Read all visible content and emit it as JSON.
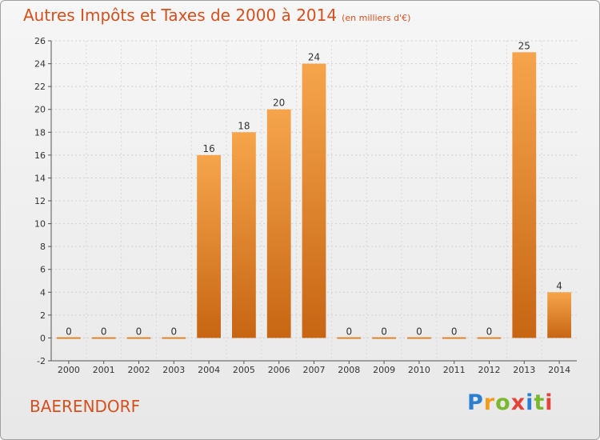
{
  "header": {
    "title": "Autres Impôts et Taxes de 2000 à 2014",
    "subtitle": "(en milliers d'€)"
  },
  "footer": {
    "commune": "BAERENDORF",
    "logo": {
      "p": "P",
      "r": "r",
      "o": "o",
      "x": "x",
      "i": "i",
      "t": "t",
      "i2": "i"
    }
  },
  "colors": {
    "bar_top": "#f6a54c",
    "bar_bottom": "#c76513",
    "title": "#d6501e",
    "logo": [
      "#2a7fd0",
      "#f39a1c",
      "#7cb82f",
      "#e2443b",
      "#2a7fd0",
      "#7cb82f",
      "#e2443b"
    ]
  },
  "chart_data": {
    "type": "bar",
    "categories": [
      "2000",
      "2001",
      "2002",
      "2003",
      "2004",
      "2005",
      "2006",
      "2007",
      "2008",
      "2009",
      "2010",
      "2011",
      "2012",
      "2013",
      "2014"
    ],
    "values": [
      0,
      0,
      0,
      0,
      16,
      18,
      20,
      24,
      0,
      0,
      0,
      0,
      0,
      25,
      4
    ],
    "value_labels": [
      "0",
      "0",
      "0",
      "0",
      "16",
      "18",
      "20",
      "24",
      "0",
      "0",
      "0",
      "0",
      "0",
      "25",
      "4"
    ],
    "ylim": [
      -2,
      26
    ],
    "yticks": [
      "-2",
      "0",
      "2",
      "4",
      "6",
      "8",
      "10",
      "12",
      "14",
      "16",
      "18",
      "20",
      "22",
      "24",
      "26"
    ],
    "grid": true
  }
}
